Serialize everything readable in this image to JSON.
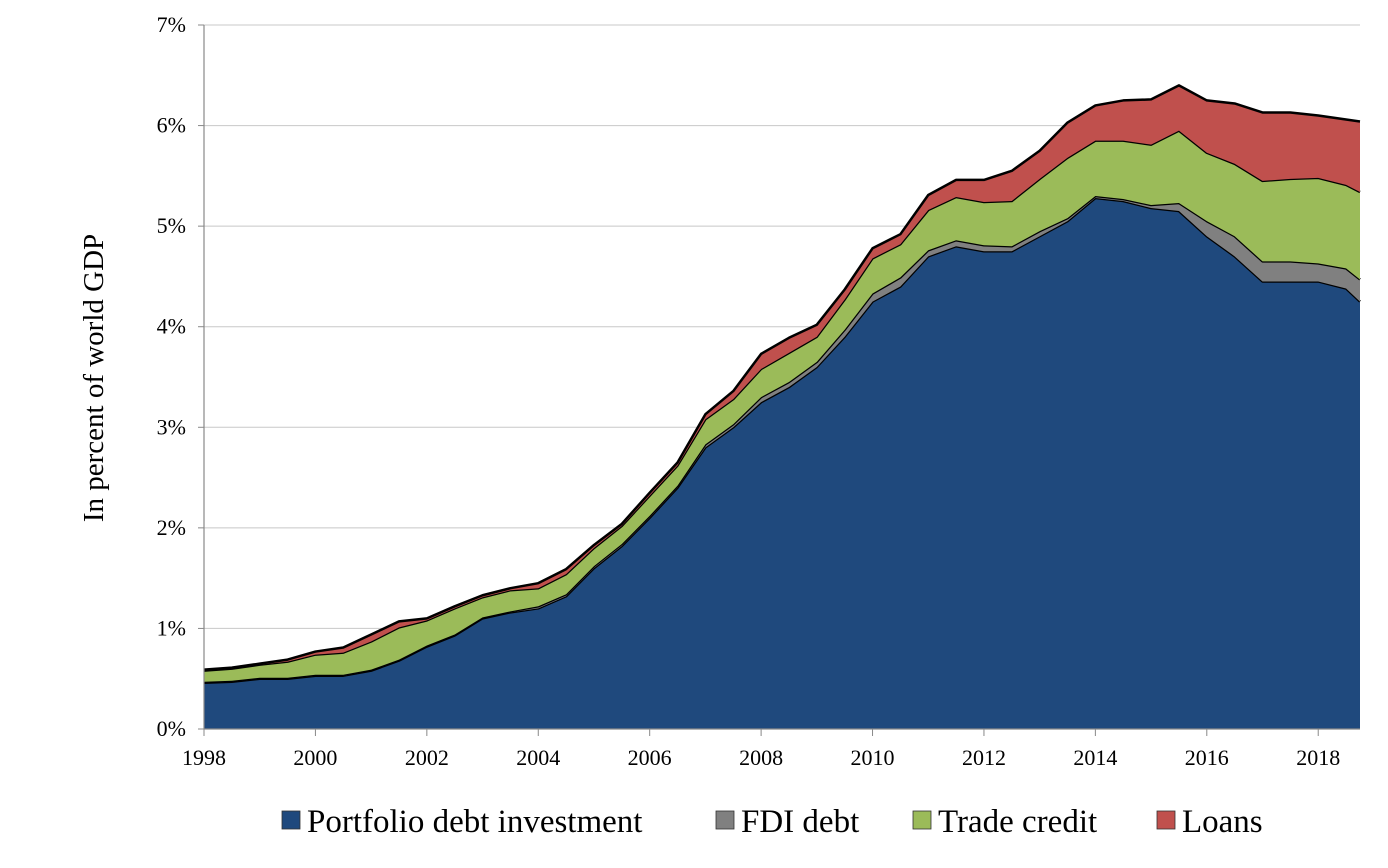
{
  "chart_data": {
    "type": "area",
    "stacked": true,
    "title": "",
    "xlabel": "",
    "ylabel": "In percent of world GDP",
    "xlim": [
      1998,
      2018.75
    ],
    "ylim": [
      0,
      7
    ],
    "x_ticks": [
      1998,
      2000,
      2002,
      2004,
      2006,
      2008,
      2010,
      2012,
      2014,
      2016,
      2018
    ],
    "x_tick_labels": [
      "1998",
      "2000",
      "2002",
      "2004",
      "2006",
      "2008",
      "2010",
      "2012",
      "2014",
      "2016",
      "2018"
    ],
    "y_ticks": [
      0,
      1,
      2,
      3,
      4,
      5,
      6,
      7
    ],
    "y_tick_labels": [
      "0%",
      "1%",
      "2%",
      "3%",
      "4%",
      "5%",
      "6%",
      "7%"
    ],
    "grid": "horizontal",
    "legend_position": "bottom",
    "x": [
      1998,
      1998.5,
      1999,
      1999.5,
      2000,
      2000.5,
      2001,
      2001.5,
      2002,
      2002.5,
      2003,
      2003.5,
      2004,
      2004.5,
      2005,
      2005.5,
      2006,
      2006.5,
      2007,
      2007.5,
      2008,
      2008.5,
      2009,
      2009.5,
      2010,
      2010.5,
      2011,
      2011.5,
      2012,
      2012.5,
      2013,
      2013.5,
      2014,
      2014.5,
      2015,
      2015.5,
      2016,
      2016.5,
      2017,
      2017.5,
      2018,
      2018.5,
      2018.75
    ],
    "series": [
      {
        "name": "Portfolio debt investment",
        "color": "#1f497d",
        "values": [
          0.46,
          0.47,
          0.5,
          0.5,
          0.53,
          0.53,
          0.58,
          0.68,
          0.82,
          0.93,
          1.1,
          1.16,
          1.2,
          1.32,
          1.6,
          1.82,
          2.1,
          2.4,
          2.8,
          3.0,
          3.25,
          3.4,
          3.6,
          3.9,
          4.25,
          4.4,
          4.7,
          4.8,
          4.75,
          4.75,
          4.9,
          5.05,
          5.28,
          5.25,
          5.18,
          5.15,
          4.9,
          4.7,
          4.45,
          4.45,
          4.45,
          4.38,
          4.25
        ]
      },
      {
        "name": "FDI debt",
        "color": "#808080",
        "values": [
          0.01,
          0.01,
          0.01,
          0.01,
          0.01,
          0.01,
          0.01,
          0.01,
          0.01,
          0.01,
          0.01,
          0.01,
          0.02,
          0.02,
          0.02,
          0.02,
          0.02,
          0.02,
          0.03,
          0.03,
          0.05,
          0.05,
          0.05,
          0.07,
          0.08,
          0.09,
          0.06,
          0.06,
          0.06,
          0.05,
          0.05,
          0.03,
          0.02,
          0.02,
          0.03,
          0.08,
          0.15,
          0.2,
          0.2,
          0.2,
          0.18,
          0.2,
          0.22
        ]
      },
      {
        "name": "Trade credit",
        "color": "#9bbb59",
        "values": [
          0.11,
          0.12,
          0.13,
          0.16,
          0.2,
          0.22,
          0.28,
          0.32,
          0.25,
          0.26,
          0.2,
          0.21,
          0.18,
          0.2,
          0.18,
          0.18,
          0.2,
          0.2,
          0.25,
          0.25,
          0.28,
          0.29,
          0.25,
          0.3,
          0.35,
          0.33,
          0.4,
          0.43,
          0.43,
          0.45,
          0.52,
          0.6,
          0.55,
          0.58,
          0.6,
          0.72,
          0.68,
          0.72,
          0.8,
          0.82,
          0.85,
          0.83,
          0.87
        ]
      },
      {
        "name": "Loans",
        "color": "#c0504d",
        "values": [
          0.01,
          0.01,
          0.01,
          0.02,
          0.03,
          0.05,
          0.07,
          0.06,
          0.02,
          0.02,
          0.02,
          0.02,
          0.05,
          0.05,
          0.03,
          0.02,
          0.03,
          0.03,
          0.05,
          0.08,
          0.15,
          0.15,
          0.12,
          0.1,
          0.1,
          0.1,
          0.15,
          0.17,
          0.22,
          0.3,
          0.28,
          0.35,
          0.35,
          0.4,
          0.45,
          0.45,
          0.52,
          0.6,
          0.68,
          0.66,
          0.62,
          0.65,
          0.7
        ]
      }
    ]
  }
}
